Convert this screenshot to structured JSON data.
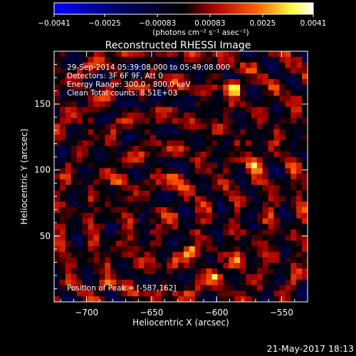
{
  "chart_data": {
    "type": "heatmap",
    "title": "Reconstructed RHESSI Image",
    "xlabel": "Heliocentric X (arcsec)",
    "ylabel": "Heliocentric Y (arcsec)",
    "xlim": [
      -725,
      -530
    ],
    "ylim": [
      0,
      190
    ],
    "x_ticks": [
      -700,
      -650,
      -600,
      -550
    ],
    "x_tick_labels": [
      "−700",
      "−650",
      "−600",
      "−550"
    ],
    "y_ticks": [
      50,
      100,
      150
    ],
    "y_tick_labels": [
      "50",
      "100",
      "150"
    ],
    "colorbar": {
      "min": -0.0041,
      "max": 0.0041,
      "ticks": [
        -0.0041,
        -0.0025,
        -0.00083,
        0.00083,
        0.0025,
        0.0041
      ],
      "tick_labels": [
        "−0.0041",
        "−0.0025",
        "−0.00083",
        "0.00083",
        "0.0025",
        "0.0041"
      ],
      "units": "(photons cm⁻² s⁻¹ asec⁻²)",
      "colors": [
        "#0000ff",
        "#000000",
        "#ff0000",
        "#ffff00",
        "#ffffff"
      ]
    },
    "annotations": [
      "29-Sep-2014 05:39:08.000 to 05:49:08.000",
      "Detectors: 3F 6F 9F, Att 0",
      "Energy Range: 300.0 - 800.0 keV",
      "Clean     Total counts: 8.51E+03"
    ],
    "peak_label": "Position of Peak = [-587,162]",
    "peak": {
      "x": -587,
      "y": 162,
      "value": 0.0041
    },
    "bright_spots": [
      {
        "x": -587,
        "y": 162,
        "value": 0.0041
      },
      {
        "x": -571,
        "y": 104,
        "value": 0.0028
      },
      {
        "x": -583,
        "y": 31,
        "value": 0.0026
      },
      {
        "x": -602,
        "y": 19,
        "value": 0.0024
      },
      {
        "x": -619,
        "y": 37,
        "value": 0.0025
      },
      {
        "x": -676,
        "y": 92,
        "value": 0.0022
      },
      {
        "x": -632,
        "y": 94,
        "value": 0.0021
      },
      {
        "x": -685,
        "y": 13,
        "value": 0.0022
      }
    ]
  },
  "footer_date": "21-May-2017 18:13"
}
